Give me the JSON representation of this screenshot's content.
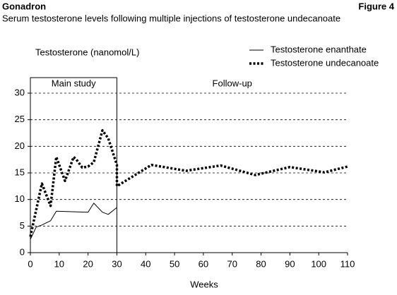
{
  "header": {
    "title": "Gonadron",
    "figure": "Figure 4",
    "subtitle": "Serum testosterone levels following multiple injections of testosterone undecanoate"
  },
  "chart_data": {
    "type": "line",
    "ylabel": "Testosterone (nanomol/L)",
    "xlabel": "Weeks",
    "annotations": [
      {
        "text": "Main study",
        "x": 15
      },
      {
        "text": "Follow-up",
        "x": 70
      }
    ],
    "divider_x": 30,
    "xlim": [
      0,
      110
    ],
    "xticks": [
      0,
      10,
      20,
      30,
      40,
      50,
      60,
      70,
      80,
      90,
      100,
      110
    ],
    "ylim": [
      0,
      30
    ],
    "yticks": [
      0,
      5,
      10,
      15,
      20,
      25,
      30
    ],
    "grid": true,
    "series": [
      {
        "name": "Testosterone enanthate",
        "color": "#000000",
        "style": "solid",
        "x": [
          0,
          2,
          4,
          7,
          9,
          20,
          22,
          25,
          27,
          30
        ],
        "values": [
          2.5,
          4.8,
          5.2,
          6,
          7.8,
          7.6,
          9.3,
          7.6,
          7.2,
          8.5
        ]
      },
      {
        "name": "Testosterone undecanoate",
        "color": "#000000",
        "style": "dotted",
        "x": [
          0,
          4,
          7,
          9,
          12,
          15,
          16,
          18,
          20,
          22,
          25,
          27,
          30,
          30,
          42,
          54,
          66,
          78,
          90,
          102,
          110
        ],
        "values": [
          3,
          13,
          8.8,
          18,
          13.5,
          18,
          17.5,
          16,
          16.2,
          17,
          23,
          21.5,
          16.5,
          12.5,
          16.5,
          15.4,
          16.4,
          14.6,
          16.1,
          15.1,
          16.2
        ]
      }
    ]
  }
}
